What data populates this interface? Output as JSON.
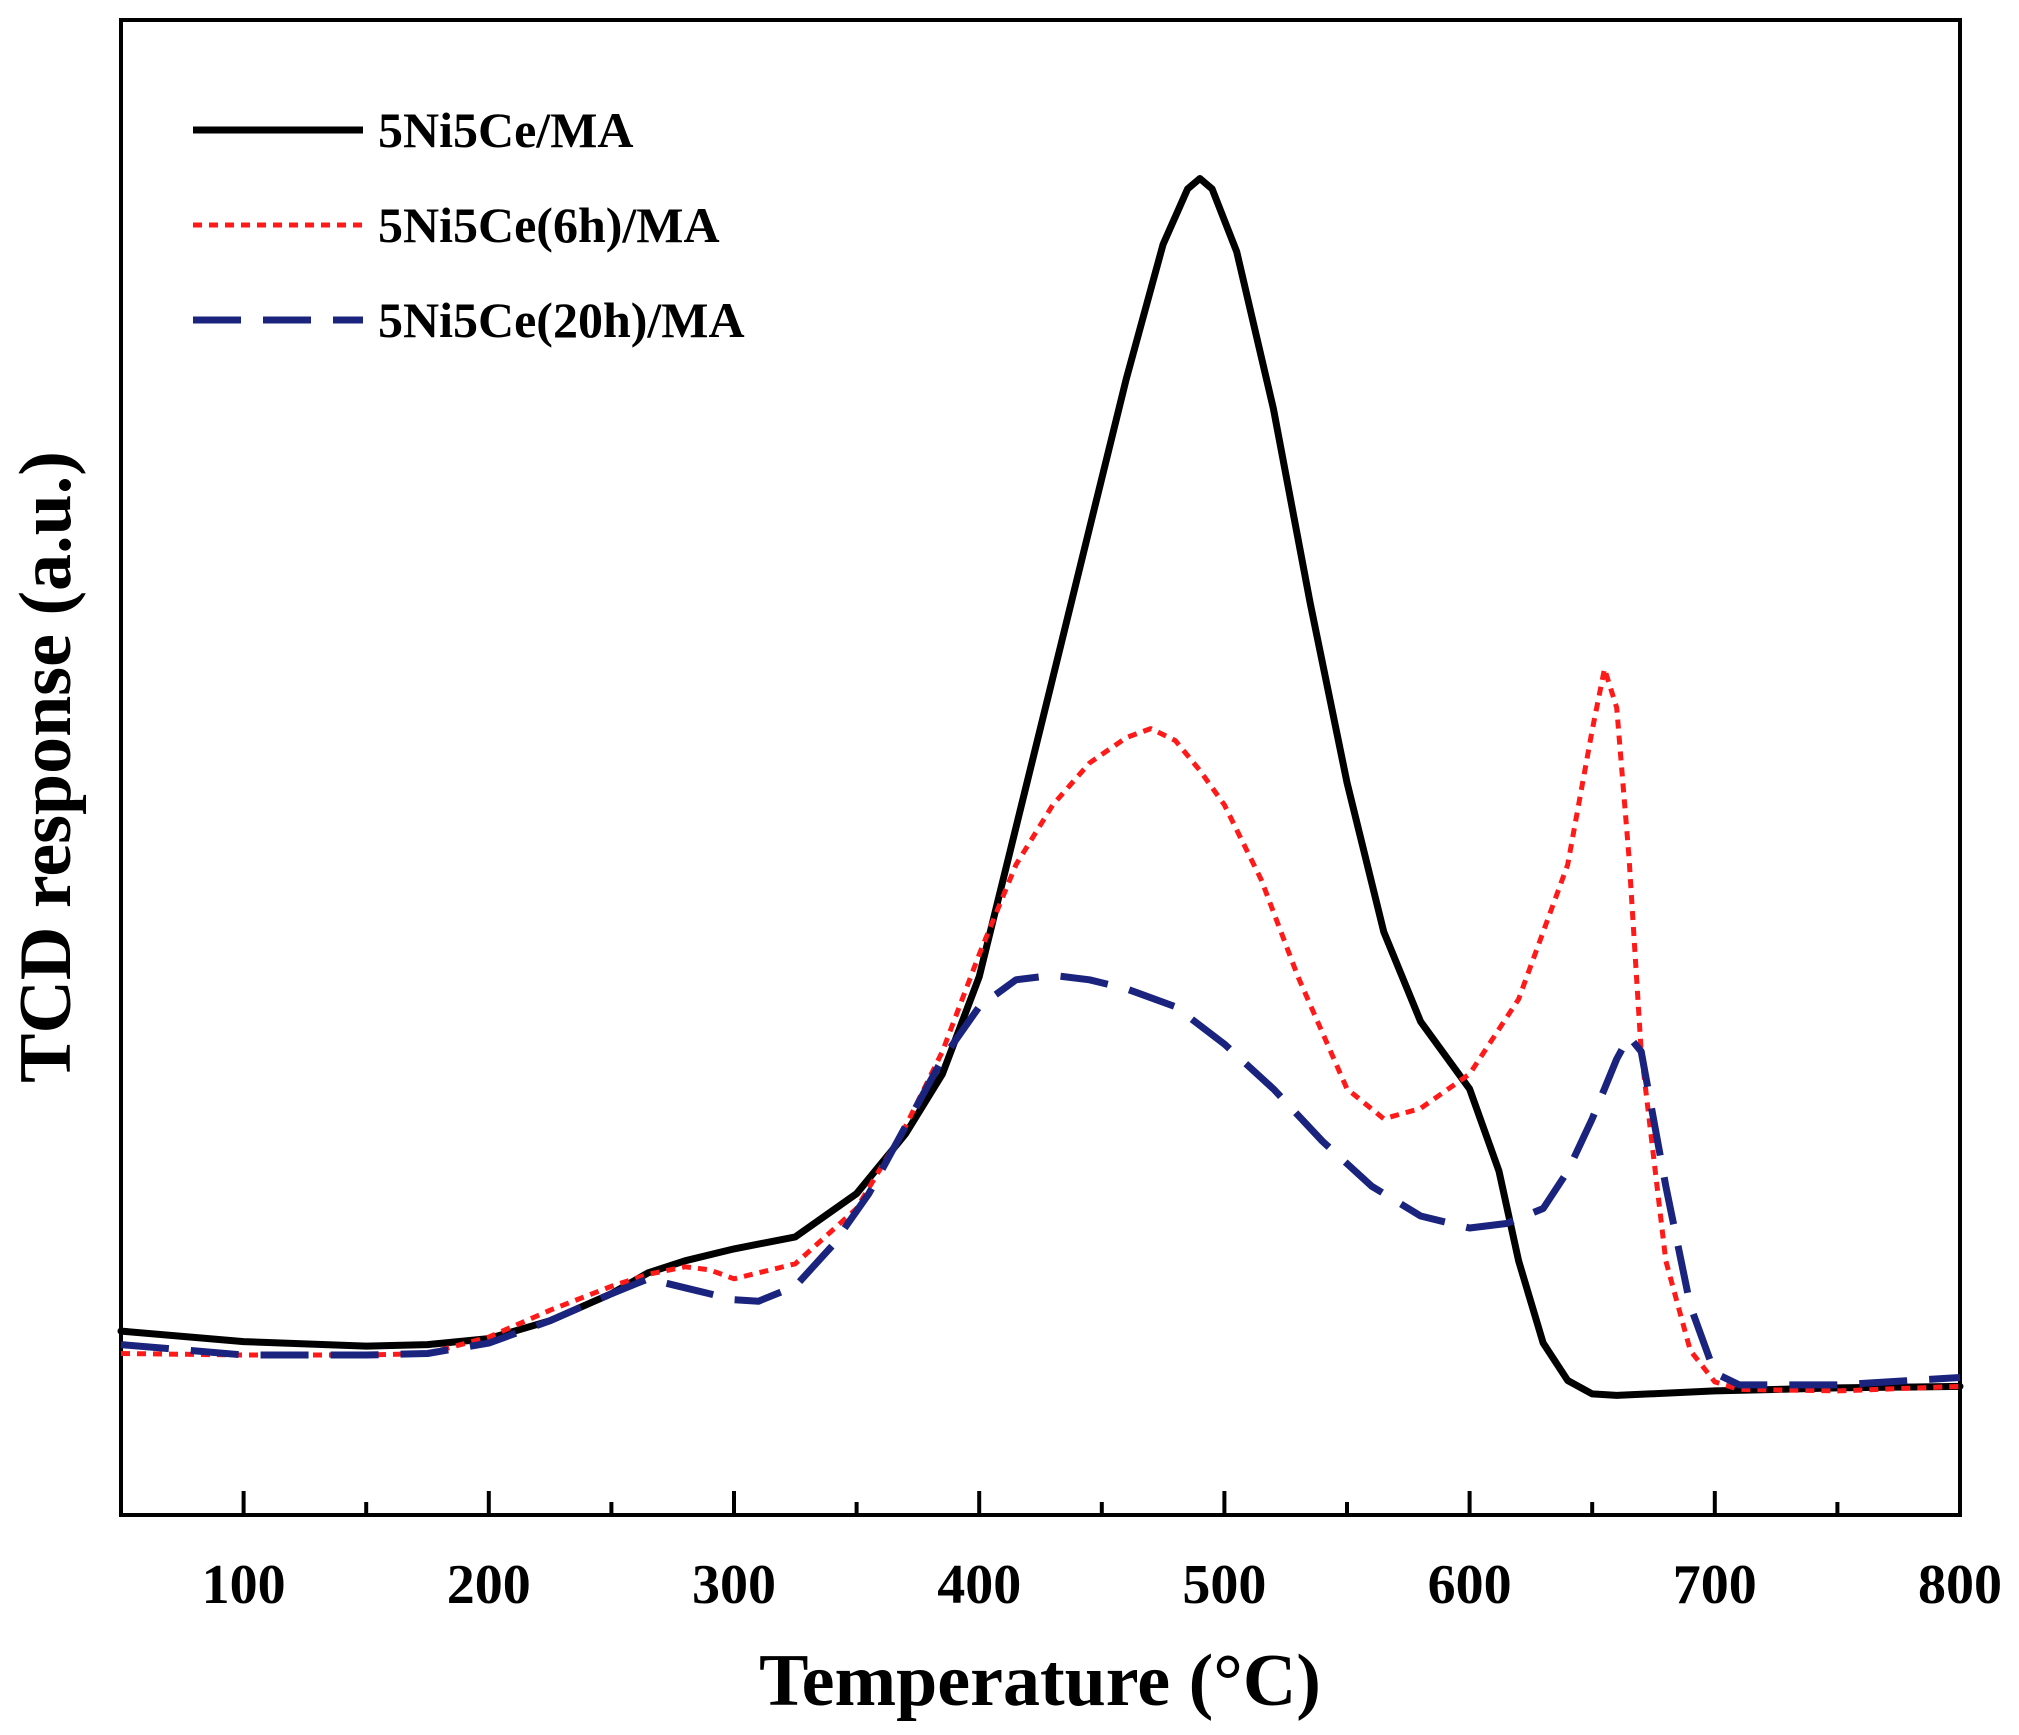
{
  "chart_data": {
    "type": "line",
    "title": "",
    "xlabel": "Temperature (°C)",
    "ylabel": "TCD response (a.u.)",
    "xlim": [
      50,
      800
    ],
    "ylim": [
      0,
      100
    ],
    "grid": false,
    "legend_position": "top-left",
    "x_ticks": [
      100,
      200,
      300,
      400,
      500,
      600,
      700,
      800
    ],
    "x_tick_labels": [
      "100",
      "200",
      "300",
      "400",
      "500",
      "600",
      "700",
      "800"
    ],
    "series": [
      {
        "name": "5Ni5Ce/MA",
        "color": "#000000",
        "style": "solid",
        "x": [
          50,
          100,
          150,
          175,
          200,
          225,
          250,
          265,
          280,
          300,
          325,
          350,
          370,
          385,
          400,
          415,
          430,
          445,
          460,
          475,
          485,
          490,
          495,
          505,
          520,
          535,
          550,
          565,
          580,
          600,
          612,
          620,
          630,
          640,
          650,
          660,
          700,
          750,
          800
        ],
        "y": [
          12.3,
          11.6,
          11.3,
          11.4,
          11.8,
          13.0,
          14.8,
          16.2,
          17.0,
          17.8,
          18.6,
          21.5,
          25.5,
          29.5,
          36.0,
          46.0,
          56.0,
          66.0,
          76.0,
          85.0,
          88.7,
          89.4,
          88.7,
          84.5,
          74.0,
          61.0,
          49.0,
          39.0,
          33.0,
          28.5,
          23.0,
          17.0,
          11.5,
          9.0,
          8.1,
          8.0,
          8.3,
          8.5,
          8.6
        ]
      },
      {
        "name": "5Ni5Ce(6h)/MA",
        "color": "#ff1a1a",
        "style": "dotted",
        "x": [
          50,
          100,
          150,
          175,
          200,
          225,
          250,
          265,
          280,
          290,
          300,
          325,
          350,
          370,
          385,
          400,
          415,
          430,
          445,
          460,
          470,
          480,
          490,
          500,
          515,
          530,
          550,
          565,
          580,
          600,
          620,
          640,
          650,
          655,
          660,
          665,
          670,
          680,
          690,
          700,
          710,
          750,
          800
        ],
        "y": [
          10.8,
          10.7,
          10.7,
          10.8,
          11.9,
          13.7,
          15.3,
          16.1,
          16.6,
          16.4,
          15.8,
          16.8,
          20.5,
          26.0,
          31.0,
          37.5,
          43.5,
          47.5,
          50.3,
          52.0,
          52.6,
          51.8,
          49.8,
          47.5,
          42.5,
          36.0,
          28.5,
          26.5,
          27.2,
          29.5,
          34.5,
          43.5,
          52.5,
          56.6,
          54.0,
          44.0,
          31.0,
          17.0,
          11.0,
          8.9,
          8.4,
          8.3,
          8.6
        ]
      },
      {
        "name": "5Ni5Ce(20h)/MA",
        "color": "#1a237e",
        "style": "dashed",
        "x": [
          50,
          100,
          150,
          175,
          200,
          225,
          250,
          265,
          280,
          300,
          310,
          325,
          340,
          355,
          370,
          385,
          400,
          415,
          430,
          445,
          460,
          480,
          500,
          520,
          540,
          560,
          580,
          600,
          615,
          630,
          640,
          650,
          660,
          665,
          670,
          680,
          690,
          700,
          710,
          750,
          800
        ],
        "y": [
          11.4,
          10.7,
          10.7,
          10.8,
          11.5,
          13.0,
          14.8,
          15.8,
          15.2,
          14.4,
          14.3,
          15.3,
          18.0,
          21.5,
          26.0,
          30.5,
          34.0,
          35.8,
          36.1,
          35.8,
          35.2,
          34.0,
          31.5,
          28.5,
          25.0,
          22.0,
          20.0,
          19.2,
          19.5,
          20.5,
          23.0,
          26.5,
          30.5,
          32.0,
          31.0,
          22.0,
          14.0,
          9.5,
          8.7,
          8.7,
          9.2
        ]
      }
    ]
  }
}
